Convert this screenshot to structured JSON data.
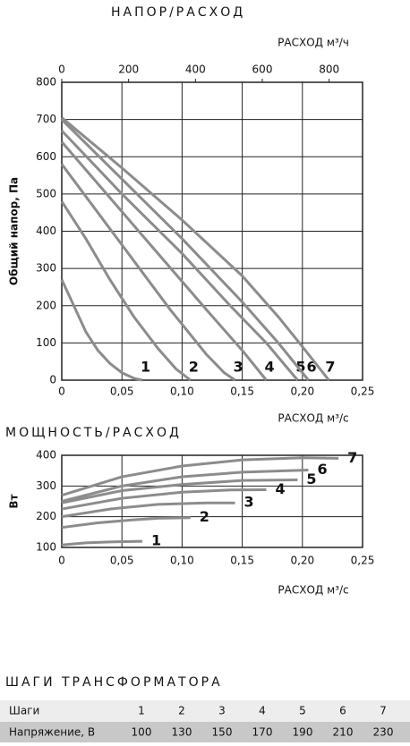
{
  "chart_data": [
    {
      "type": "line",
      "title": "НАПОР/РАСХОД",
      "xlabel": "РАСХОД м³/с",
      "x2label": "РАСХОД м³/ч",
      "ylabel": "Общий напор, Па",
      "xlim": [
        0,
        0.25
      ],
      "xticks": [
        0,
        {
          "value": 0.05,
          "label": "0,05"
        },
        {
          "value": 0.1,
          "label": "0,10"
        },
        {
          "value": 0.15,
          "label": "0,15"
        },
        {
          "value": 0.2,
          "label": "0,20"
        },
        {
          "value": 0.25,
          "label": "0,25"
        }
      ],
      "x2lim": [
        0,
        900
      ],
      "x2ticks": [
        0,
        200,
        400,
        600,
        800
      ],
      "ylim": [
        0,
        800
      ],
      "yticks": [
        0,
        100,
        200,
        300,
        400,
        500,
        600,
        700,
        800
      ],
      "grid": true,
      "color": "#8c8c8c",
      "series": [
        {
          "name": "1",
          "x": [
            0,
            0.01,
            0.02,
            0.03,
            0.04,
            0.05,
            0.06,
            0.067
          ],
          "values": [
            270,
            200,
            130,
            80,
            45,
            20,
            5,
            0
          ]
        },
        {
          "name": "2",
          "x": [
            0,
            0.02,
            0.04,
            0.06,
            0.08,
            0.095,
            0.107
          ],
          "values": [
            480,
            380,
            270,
            170,
            85,
            30,
            0
          ]
        },
        {
          "name": "3",
          "x": [
            0,
            0.03,
            0.06,
            0.09,
            0.12,
            0.135,
            0.144
          ],
          "values": [
            580,
            450,
            320,
            190,
            70,
            20,
            0
          ]
        },
        {
          "name": "4",
          "x": [
            0,
            0.04,
            0.08,
            0.12,
            0.15,
            0.17
          ],
          "values": [
            640,
            490,
            340,
            190,
            80,
            0
          ]
        },
        {
          "name": "5",
          "x": [
            0,
            0.05,
            0.1,
            0.14,
            0.17,
            0.196
          ],
          "values": [
            670,
            500,
            340,
            200,
            100,
            0
          ]
        },
        {
          "name": "6",
          "x": [
            0,
            0.05,
            0.1,
            0.15,
            0.18,
            0.205
          ],
          "values": [
            700,
            540,
            380,
            210,
            100,
            0
          ]
        },
        {
          "name": "7",
          "x": [
            0,
            0.05,
            0.1,
            0.15,
            0.18,
            0.2,
            0.222
          ],
          "values": [
            705,
            570,
            430,
            280,
            170,
            90,
            0
          ]
        }
      ]
    },
    {
      "type": "line",
      "title": "МОЩНОСТЬ/РАСХОД",
      "xlabel": "РАСХОД м³/с",
      "ylabel": "Вт",
      "xlim": [
        0,
        0.25
      ],
      "xticks": [
        0,
        {
          "value": 0.05,
          "label": "0,05"
        },
        {
          "value": 0.1,
          "label": "0,10"
        },
        {
          "value": 0.15,
          "label": "0,15"
        },
        {
          "value": 0.2,
          "label": "0,20"
        },
        {
          "value": 0.25,
          "label": "0,25"
        }
      ],
      "ylim": [
        100,
        400
      ],
      "yticks": [
        100,
        200,
        300,
        400
      ],
      "grid": true,
      "color": "#8c8c8c",
      "series": [
        {
          "name": "1",
          "x": [
            0,
            0.02,
            0.04,
            0.067
          ],
          "values": [
            108,
            115,
            118,
            120
          ]
        },
        {
          "name": "2",
          "x": [
            0,
            0.03,
            0.06,
            0.08,
            0.107
          ],
          "values": [
            165,
            180,
            190,
            195,
            197
          ]
        },
        {
          "name": "3",
          "x": [
            0,
            0.04,
            0.08,
            0.12,
            0.144
          ],
          "values": [
            200,
            225,
            240,
            245,
            245
          ]
        },
        {
          "name": "4",
          "x": [
            0,
            0.05,
            0.1,
            0.14,
            0.17
          ],
          "values": [
            225,
            260,
            280,
            287,
            288
          ]
        },
        {
          "name": "5",
          "x": [
            0,
            0.05,
            0.1,
            0.15,
            0.196
          ],
          "values": [
            245,
            285,
            305,
            318,
            320
          ]
        },
        {
          "name": "6",
          "x": [
            0,
            0.05,
            0.1,
            0.15,
            0.205
          ],
          "values": [
            250,
            300,
            330,
            345,
            352
          ]
        },
        {
          "name": "7",
          "x": [
            0,
            0.05,
            0.1,
            0.15,
            0.2,
            0.23
          ],
          "values": [
            270,
            330,
            365,
            385,
            392,
            390
          ]
        }
      ]
    }
  ],
  "table": {
    "title": "ШАГИ ТРАНСФОРМАТОРА",
    "rows": [
      [
        "Шаги",
        1,
        2,
        3,
        4,
        5,
        6,
        7
      ],
      [
        "Напряжение, В",
        100,
        130,
        150,
        170,
        190,
        210,
        230
      ]
    ]
  }
}
